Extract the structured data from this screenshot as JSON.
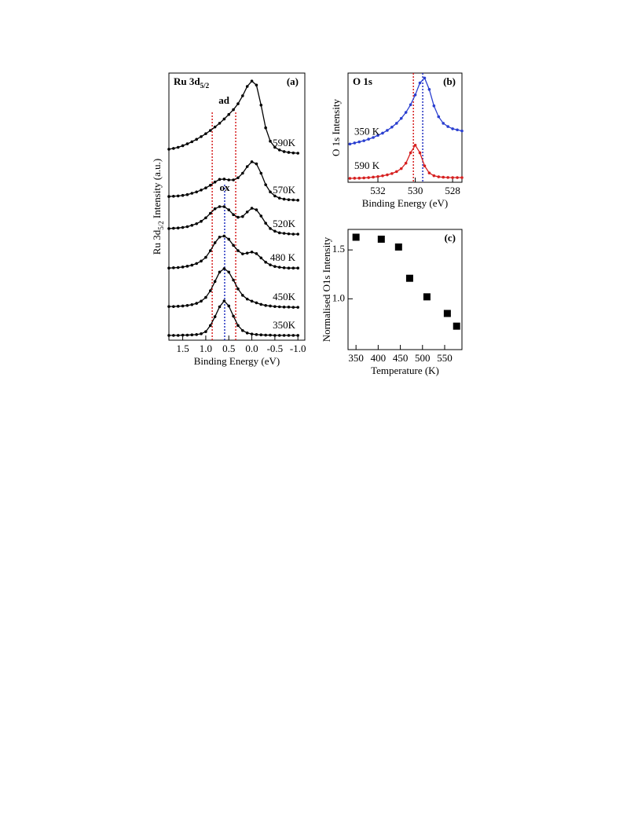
{
  "chart_data": [
    {
      "type": "line",
      "title": [
        "Ru 3d",
        "5/2"
      ],
      "panel_label": "(a)",
      "xlabel": "Binding Energy (eV)",
      "ylabel": [
        "Ru 3d",
        "5/2",
        " Intensity (a.u.)"
      ],
      "xlim": [
        1.8,
        -1.15
      ],
      "ylim": [
        0,
        100
      ],
      "xticks": [
        1.5,
        {
          "value": 1,
          "label": "1.0"
        },
        0.5,
        {
          "value": 0,
          "label": "0.0"
        },
        -0.5,
        {
          "value": -1,
          "label": "-1.0"
        }
      ],
      "reference_lines": [
        {
          "x": 0.86,
          "color": "#d62020"
        },
        {
          "x": 0.35,
          "color": "#d62020"
        },
        {
          "x": 0.59,
          "color": "#2030c0"
        }
      ],
      "annotations": [
        {
          "text": "ad",
          "color": "#d62020"
        },
        {
          "text": "ox",
          "color": "#2030c0"
        }
      ],
      "x": [
        1.8,
        1.7,
        1.6,
        1.5,
        1.4,
        1.3,
        1.2,
        1.1,
        1.0,
        0.9,
        0.8,
        0.7,
        0.6,
        0.5,
        0.4,
        0.3,
        0.2,
        0.1,
        0.0,
        -0.1,
        -0.2,
        -0.3,
        -0.4,
        -0.5,
        -0.6,
        -0.7,
        -0.8,
        -0.9,
        -1.0
      ],
      "series": [
        {
          "name": "350K",
          "color": "#000000",
          "values": [
            1.8,
            1.8,
            1.8,
            1.9,
            1.9,
            2.0,
            2.1,
            2.4,
            3.2,
            5.5,
            8.8,
            12.5,
            14.7,
            12.8,
            9.0,
            5.5,
            3.6,
            2.7,
            2.3,
            2.1,
            2.0,
            1.9,
            1.9,
            1.8,
            1.8,
            1.8,
            1.8,
            1.8,
            1.8
          ]
        },
        {
          "name": "450K",
          "color": "#000000",
          "values": [
            12.6,
            12.6,
            12.7,
            12.8,
            13.0,
            13.3,
            13.8,
            14.6,
            16.0,
            18.5,
            22,
            25.5,
            26.8,
            25.5,
            22.5,
            19.2,
            16.8,
            15.4,
            14.6,
            14.0,
            13.4,
            13.0,
            12.8,
            12.6,
            12.5,
            12.4,
            12.4,
            12.3,
            12.3
          ]
        },
        {
          "name": "480 K",
          "color": "#000000",
          "values": [
            27,
            27.1,
            27.2,
            27.4,
            27.7,
            28.1,
            28.7,
            29.6,
            31,
            33.5,
            36.5,
            38.6,
            39,
            37.8,
            35.5,
            33.5,
            32.3,
            32.6,
            33,
            32.4,
            30.8,
            29.2,
            28.2,
            27.6,
            27.3,
            27.1,
            27,
            27,
            27
          ]
        },
        {
          "name": "520K",
          "color": "#000000",
          "values": [
            41.8,
            41.9,
            42,
            42.2,
            42.5,
            43,
            43.6,
            44.5,
            45.8,
            47.5,
            49.2,
            50,
            50,
            48.8,
            47,
            46,
            46.3,
            48,
            49.4,
            48.8,
            46.5,
            43.8,
            41.8,
            40.8,
            40.2,
            40,
            39.8,
            39.7,
            39.7
          ]
        },
        {
          "name": "570K",
          "color": "#000000",
          "values": [
            53.8,
            53.9,
            54,
            54.2,
            54.5,
            55,
            55.5,
            56.2,
            57,
            58,
            59.2,
            60.2,
            60.3,
            60,
            60,
            60.8,
            62.5,
            65,
            66.8,
            66,
            62.5,
            58.2,
            55.5,
            54,
            53.2,
            52.8,
            52.6,
            52.5,
            52.4
          ]
        },
        {
          "name": "590K",
          "color": "#000000",
          "values": [
            71.5,
            71.8,
            72.2,
            72.8,
            73.5,
            74.3,
            75.2,
            76.2,
            77.3,
            78.5,
            79.8,
            81.2,
            82.8,
            84.5,
            86.3,
            88.5,
            91.5,
            95,
            97,
            95.5,
            88,
            79.5,
            74.5,
            72.2,
            71.2,
            70.6,
            70.3,
            70.1,
            70
          ]
        }
      ]
    },
    {
      "type": "line",
      "title": [
        "O 1s"
      ],
      "panel_label": "(b)",
      "xlabel": "Binding Energy (eV)",
      "ylabel": [
        "O 1s Intensity"
      ],
      "xlim": [
        533.6,
        527.5
      ],
      "ylim": [
        0,
        100
      ],
      "xticks": [
        532,
        530,
        528
      ],
      "reference_lines": [
        {
          "x": 530.1,
          "color": "#d62020"
        },
        {
          "x": 529.6,
          "color": "#2030c0"
        }
      ],
      "x": [
        533.5,
        533.25,
        533,
        532.75,
        532.5,
        532.25,
        532,
        531.75,
        531.5,
        531.25,
        531,
        530.75,
        530.5,
        530.25,
        530,
        529.75,
        529.5,
        529.25,
        529,
        528.75,
        528.5,
        528.25,
        528,
        527.75,
        527.5
      ],
      "series": [
        {
          "name": "350 K",
          "color": "#2a3fd0",
          "values": [
            35,
            36,
            37,
            38,
            39.5,
            41,
            43,
            45,
            47.5,
            50.5,
            54,
            58.5,
            64,
            71,
            80,
            91,
            95.5,
            85,
            70,
            60,
            54,
            51,
            49,
            48,
            47
          ]
        },
        {
          "name": "590 K",
          "color": "#d62020",
          "values": [
            3.6,
            3.7,
            3.8,
            4,
            4.3,
            4.7,
            5.2,
            5.9,
            6.8,
            8,
            9.8,
            12.5,
            17.5,
            27,
            34,
            27,
            15,
            8.5,
            6,
            5,
            4.6,
            4.4,
            4.3,
            4.3,
            4.3
          ]
        }
      ]
    },
    {
      "type": "scatter",
      "panel_label": "(c)",
      "xlabel": "Temperature (K)",
      "ylabel": [
        "Normalised O1s Intensity"
      ],
      "xlim": [
        332,
        589
      ],
      "ylim": [
        0.48,
        1.71
      ],
      "xticks": [
        350,
        400,
        450,
        500,
        550
      ],
      "yticks": [
        {
          "value": 1,
          "label": "1.0"
        },
        1.5
      ],
      "color": "#000000",
      "x": [
        350,
        407,
        446,
        471,
        510,
        556,
        577
      ],
      "values": [
        1.63,
        1.61,
        1.53,
        1.21,
        1.02,
        0.85,
        0.72
      ]
    }
  ]
}
